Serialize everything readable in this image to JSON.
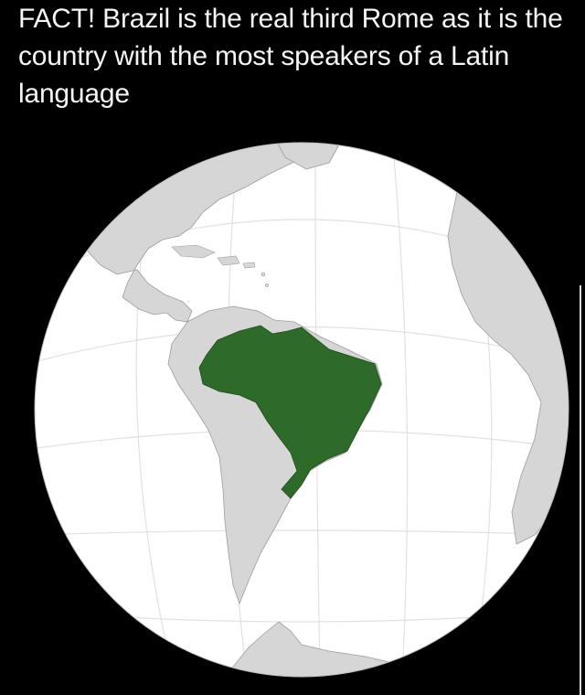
{
  "post": {
    "text": "FACT! Brazil is the real third Rome as it is the country with the most speakers of a Latin language"
  },
  "map": {
    "projection": "orthographic",
    "highlighted_country": "Brazil",
    "colors": {
      "background": "#000000",
      "ocean": "#ffffff",
      "land": "#d6d6d6",
      "border": "#9c9c9c",
      "highlight": "#2e6a2a",
      "graticule": "#e1e1e1"
    }
  }
}
